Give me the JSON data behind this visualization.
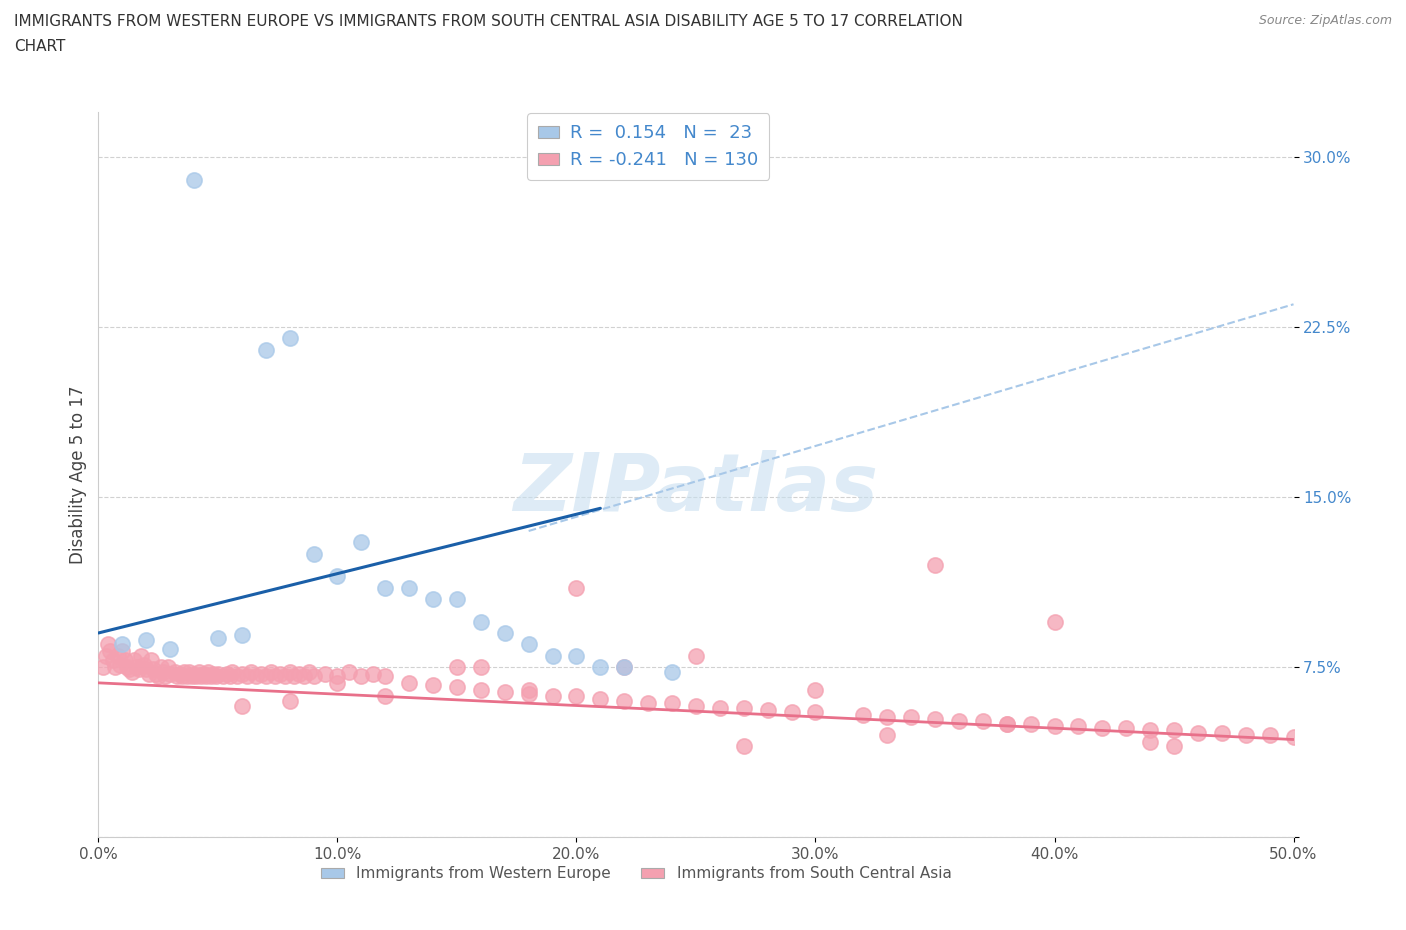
{
  "title_line1": "IMMIGRANTS FROM WESTERN EUROPE VS IMMIGRANTS FROM SOUTH CENTRAL ASIA DISABILITY AGE 5 TO 17 CORRELATION",
  "title_line2": "CHART",
  "source": "Source: ZipAtlas.com",
  "ylabel": "Disability Age 5 to 17",
  "xlim": [
    0.0,
    0.5
  ],
  "ylim": [
    0.0,
    0.32
  ],
  "xticks": [
    0.0,
    0.1,
    0.2,
    0.3,
    0.4,
    0.5
  ],
  "xticklabels": [
    "0.0%",
    "10.0%",
    "20.0%",
    "30.0%",
    "40.0%",
    "50.0%"
  ],
  "yticks": [
    0.0,
    0.075,
    0.15,
    0.225,
    0.3
  ],
  "yticklabels": [
    "",
    "7.5%",
    "15.0%",
    "22.5%",
    "30.0%"
  ],
  "R_blue": 0.154,
  "N_blue": 23,
  "R_pink": -0.241,
  "N_pink": 130,
  "blue_color": "#a8c8e8",
  "pink_color": "#f4a0b0",
  "trendline_blue": "#1a5fa8",
  "trendline_pink": "#e8708a",
  "dash_color": "#a8c8e8",
  "watermark_color": "#c8dff0",
  "label_color": "#4488cc",
  "legend_label_blue": "Immigrants from Western Europe",
  "legend_label_pink": "Immigrants from South Central Asia",
  "blue_x": [
    0.01,
    0.02,
    0.03,
    0.04,
    0.05,
    0.06,
    0.07,
    0.08,
    0.09,
    0.1,
    0.11,
    0.12,
    0.13,
    0.14,
    0.15,
    0.16,
    0.17,
    0.18,
    0.19,
    0.2,
    0.21,
    0.22,
    0.24
  ],
  "blue_y": [
    0.085,
    0.087,
    0.083,
    0.29,
    0.088,
    0.089,
    0.215,
    0.22,
    0.125,
    0.115,
    0.13,
    0.11,
    0.11,
    0.105,
    0.105,
    0.095,
    0.09,
    0.085,
    0.08,
    0.08,
    0.075,
    0.075,
    0.073
  ],
  "pink_x": [
    0.002,
    0.003,
    0.004,
    0.005,
    0.006,
    0.007,
    0.008,
    0.009,
    0.01,
    0.011,
    0.012,
    0.013,
    0.014,
    0.015,
    0.016,
    0.017,
    0.018,
    0.019,
    0.02,
    0.021,
    0.022,
    0.023,
    0.024,
    0.025,
    0.026,
    0.027,
    0.028,
    0.029,
    0.03,
    0.032,
    0.033,
    0.034,
    0.035,
    0.036,
    0.037,
    0.038,
    0.039,
    0.04,
    0.041,
    0.042,
    0.043,
    0.044,
    0.045,
    0.046,
    0.047,
    0.048,
    0.049,
    0.05,
    0.052,
    0.054,
    0.055,
    0.056,
    0.058,
    0.06,
    0.062,
    0.064,
    0.066,
    0.068,
    0.07,
    0.072,
    0.074,
    0.076,
    0.078,
    0.08,
    0.082,
    0.084,
    0.086,
    0.088,
    0.09,
    0.095,
    0.1,
    0.105,
    0.11,
    0.115,
    0.12,
    0.13,
    0.14,
    0.15,
    0.16,
    0.17,
    0.18,
    0.19,
    0.2,
    0.21,
    0.22,
    0.23,
    0.24,
    0.25,
    0.26,
    0.27,
    0.28,
    0.29,
    0.3,
    0.32,
    0.33,
    0.34,
    0.35,
    0.36,
    0.37,
    0.38,
    0.39,
    0.4,
    0.41,
    0.42,
    0.43,
    0.44,
    0.45,
    0.46,
    0.47,
    0.48,
    0.49,
    0.5,
    0.35,
    0.4,
    0.25,
    0.2,
    0.15,
    0.1,
    0.3,
    0.45,
    0.22,
    0.33,
    0.16,
    0.27,
    0.38,
    0.44,
    0.18,
    0.12,
    0.08,
    0.06
  ],
  "pink_y": [
    0.075,
    0.08,
    0.085,
    0.082,
    0.078,
    0.075,
    0.08,
    0.076,
    0.082,
    0.078,
    0.075,
    0.074,
    0.073,
    0.078,
    0.075,
    0.074,
    0.08,
    0.076,
    0.074,
    0.072,
    0.078,
    0.074,
    0.072,
    0.071,
    0.075,
    0.073,
    0.071,
    0.075,
    0.072,
    0.073,
    0.071,
    0.072,
    0.071,
    0.073,
    0.071,
    0.073,
    0.071,
    0.072,
    0.071,
    0.073,
    0.071,
    0.072,
    0.071,
    0.073,
    0.071,
    0.072,
    0.071,
    0.072,
    0.071,
    0.072,
    0.071,
    0.073,
    0.071,
    0.072,
    0.071,
    0.073,
    0.071,
    0.072,
    0.071,
    0.073,
    0.071,
    0.072,
    0.071,
    0.073,
    0.071,
    0.072,
    0.071,
    0.073,
    0.071,
    0.072,
    0.071,
    0.073,
    0.071,
    0.072,
    0.071,
    0.068,
    0.067,
    0.066,
    0.065,
    0.064,
    0.063,
    0.062,
    0.062,
    0.061,
    0.06,
    0.059,
    0.059,
    0.058,
    0.057,
    0.057,
    0.056,
    0.055,
    0.055,
    0.054,
    0.053,
    0.053,
    0.052,
    0.051,
    0.051,
    0.05,
    0.05,
    0.049,
    0.049,
    0.048,
    0.048,
    0.047,
    0.047,
    0.046,
    0.046,
    0.045,
    0.045,
    0.044,
    0.12,
    0.095,
    0.08,
    0.11,
    0.075,
    0.068,
    0.065,
    0.04,
    0.075,
    0.045,
    0.075,
    0.04,
    0.05,
    0.042,
    0.065,
    0.062,
    0.06,
    0.058
  ]
}
